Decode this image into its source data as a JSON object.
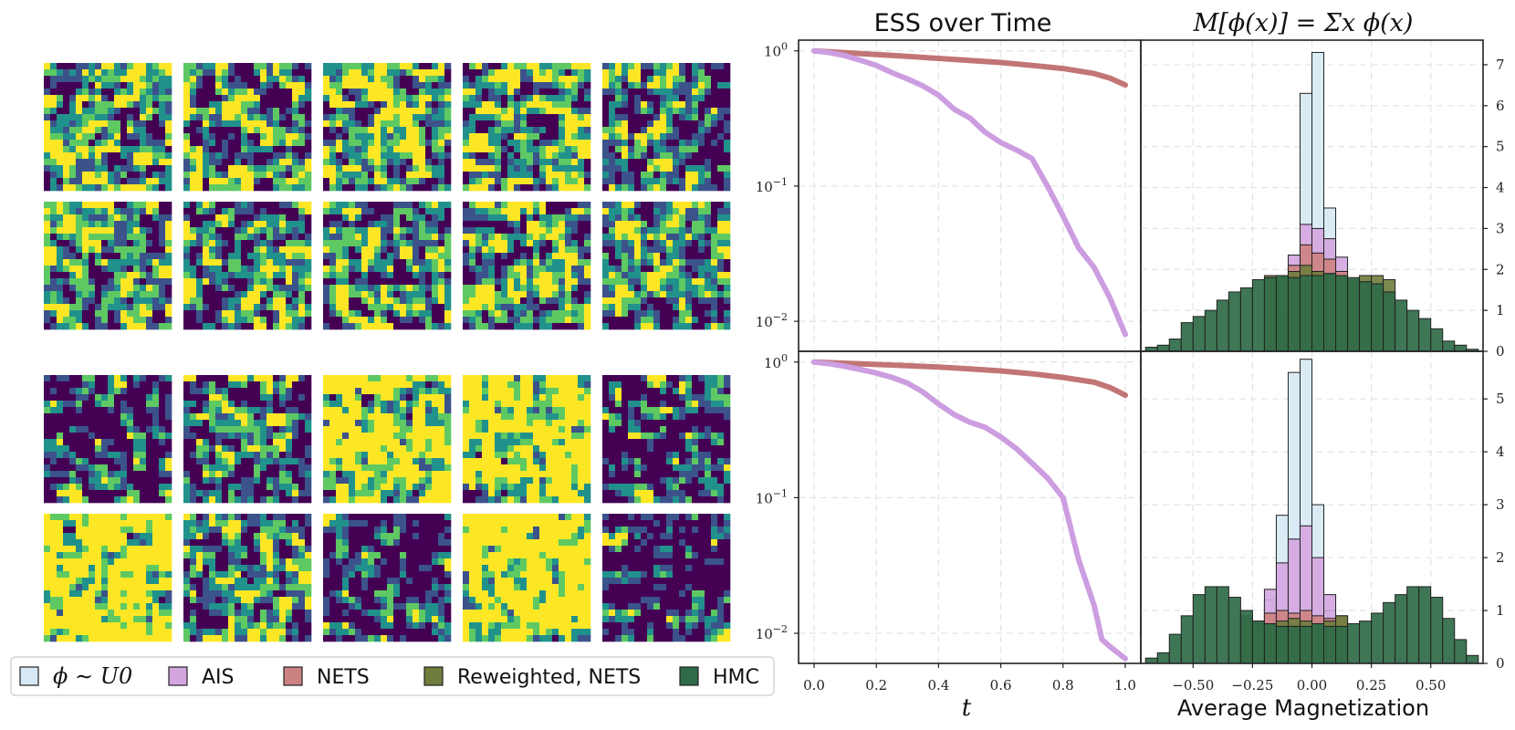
{
  "legend": {
    "items": [
      {
        "label": "ϕ ∼ U0",
        "color": "#d6e9f5"
      },
      {
        "label": "AIS",
        "color": "#d4a6e0"
      },
      {
        "label": "NETS",
        "color": "#cd8282"
      },
      {
        "label": "Reweighted, NETS",
        "color": "#6f7d3c"
      },
      {
        "label": "HMC",
        "color": "#2f6b48"
      }
    ]
  },
  "samples": {
    "colormap": [
      "#440154",
      "#3b528b",
      "#21918c",
      "#5ec962",
      "#fde725"
    ],
    "grid_size": 20,
    "seeds": [
      [
        11,
        12,
        13,
        14,
        15,
        16,
        17,
        18,
        19,
        20
      ],
      [
        21,
        22,
        23,
        24,
        25,
        26,
        27,
        28,
        29,
        30
      ]
    ],
    "bias": [
      [
        0.1,
        0.0,
        0.15,
        0.0,
        -0.05,
        0.0,
        0.0,
        -0.05,
        0.0,
        -0.05
      ],
      [
        -0.35,
        -0.15,
        0.35,
        0.45,
        -0.25,
        0.55,
        -0.1,
        -0.3,
        0.55,
        -0.4
      ]
    ]
  },
  "chart_data": [
    {
      "type": "line",
      "title": "ESS over Time",
      "ylog": true,
      "ylim": [
        0.006,
        1.2
      ],
      "xlim": [
        -0.05,
        1.05
      ],
      "yticks": [
        "10^0",
        "10^-1",
        "10^-2"
      ],
      "xticks": [
        "0.0",
        "0.2",
        "0.4",
        "0.6",
        "0.8",
        "1.0"
      ],
      "xlabel": "",
      "series": [
        {
          "color": "#c27575",
          "x": [
            0,
            0.1,
            0.2,
            0.3,
            0.4,
            0.5,
            0.6,
            0.7,
            0.8,
            0.9,
            0.95,
            1.0
          ],
          "y": [
            1.0,
            0.97,
            0.94,
            0.91,
            0.88,
            0.85,
            0.82,
            0.78,
            0.74,
            0.68,
            0.63,
            0.56
          ]
        },
        {
          "color": "#cc9de0",
          "x": [
            0,
            0.05,
            0.1,
            0.15,
            0.2,
            0.25,
            0.3,
            0.35,
            0.4,
            0.45,
            0.5,
            0.55,
            0.6,
            0.65,
            0.7,
            0.75,
            0.8,
            0.85,
            0.9,
            0.95,
            1.0
          ],
          "y": [
            1.0,
            0.97,
            0.92,
            0.85,
            0.78,
            0.69,
            0.62,
            0.55,
            0.47,
            0.37,
            0.32,
            0.25,
            0.21,
            0.185,
            0.16,
            0.1,
            0.06,
            0.035,
            0.025,
            0.015,
            0.008
          ]
        }
      ]
    },
    {
      "type": "line",
      "title": "",
      "ylog": true,
      "ylim": [
        0.006,
        1.2
      ],
      "xlim": [
        -0.05,
        1.05
      ],
      "yticks": [
        "10^0",
        "10^-1",
        "10^-2"
      ],
      "xticks": [
        "0.0",
        "0.2",
        "0.4",
        "0.6",
        "0.8",
        "1.0"
      ],
      "xlabel": "t",
      "series": [
        {
          "color": "#c27575",
          "x": [
            0,
            0.1,
            0.2,
            0.3,
            0.4,
            0.5,
            0.6,
            0.7,
            0.8,
            0.9,
            0.95,
            1.0
          ],
          "y": [
            1.0,
            0.98,
            0.96,
            0.94,
            0.92,
            0.89,
            0.86,
            0.82,
            0.77,
            0.71,
            0.65,
            0.57
          ]
        },
        {
          "color": "#cc9de0",
          "x": [
            0,
            0.05,
            0.1,
            0.15,
            0.2,
            0.25,
            0.3,
            0.35,
            0.4,
            0.45,
            0.5,
            0.55,
            0.6,
            0.65,
            0.7,
            0.75,
            0.8,
            0.85,
            0.9,
            0.925,
            0.95,
            1.0
          ],
          "y": [
            1.0,
            0.97,
            0.93,
            0.88,
            0.83,
            0.77,
            0.7,
            0.6,
            0.49,
            0.41,
            0.36,
            0.33,
            0.28,
            0.23,
            0.18,
            0.14,
            0.1,
            0.035,
            0.016,
            0.009,
            0.008,
            0.0065
          ]
        }
      ]
    },
    {
      "type": "histogram",
      "title": "M[ϕ(x)] = Σx ϕ(x)",
      "xlabel": "",
      "xlim": [
        -0.72,
        0.72
      ],
      "ylim": [
        0,
        7.6
      ],
      "bin_width": 0.05,
      "xticks": [
        "−0.50",
        "−0.25",
        "0.00",
        "0.25",
        "0.50"
      ],
      "yticks": [
        "0",
        "1",
        "2",
        "3",
        "4",
        "5",
        "6",
        "7"
      ],
      "series": [
        {
          "name": "ϕ ∼ U0",
          "color": "#d6e9f5",
          "bins_start": -0.15,
          "values": [
            0,
            0,
            6.3,
            7.3,
            3.5,
            0,
            0
          ]
        },
        {
          "name": "AIS",
          "color": "#d4a6e0",
          "bins_start": -0.15,
          "values": [
            0.2,
            2.35,
            3.1,
            3.0,
            2.75,
            2.3,
            0.3
          ]
        },
        {
          "name": "NETS",
          "color": "#cd8282",
          "bins_start": -0.15,
          "values": [
            0.8,
            2.1,
            2.6,
            2.4,
            2.25,
            1.95,
            0.8
          ]
        },
        {
          "name": "Reweighted, NETS",
          "color": "#6f7d3c",
          "bins_start": -0.2,
          "values": [
            1.85,
            1.85,
            1.95,
            2.1,
            1.95,
            1.9,
            1.85,
            1.75,
            1.85,
            1.85,
            1.75
          ]
        },
        {
          "name": "HMC",
          "color": "#2f6b48",
          "bins_start": -0.7,
          "values": [
            0.1,
            0.15,
            0.3,
            0.7,
            0.85,
            1.0,
            1.25,
            1.45,
            1.55,
            1.75,
            1.8,
            1.85,
            1.8,
            1.85,
            1.85,
            1.9,
            1.85,
            1.8,
            1.7,
            1.65,
            1.45,
            1.25,
            1.0,
            0.8,
            0.55,
            0.25,
            0.15,
            0.05
          ]
        }
      ]
    },
    {
      "type": "histogram",
      "title": "",
      "xlabel": "Average Magnetization",
      "xlim": [
        -0.72,
        0.72
      ],
      "ylim": [
        0,
        5.9
      ],
      "bin_width": 0.05,
      "xticks": [
        "−0.50",
        "−0.25",
        "0.00",
        "0.25",
        "0.50"
      ],
      "yticks": [
        "0",
        "1",
        "2",
        "3",
        "4",
        "5"
      ],
      "series": [
        {
          "name": "ϕ ∼ U0",
          "color": "#d6e9f5",
          "bins_start": -0.25,
          "values": [
            0.3,
            1.2,
            2.8,
            5.5,
            5.75,
            3.0,
            1.0,
            0.3
          ]
        },
        {
          "name": "AIS",
          "color": "#d4a6e0",
          "bins_start": -0.25,
          "values": [
            0.6,
            1.4,
            1.9,
            2.35,
            2.6,
            2.0,
            1.3,
            0.5
          ]
        },
        {
          "name": "NETS",
          "color": "#cd8282",
          "bins_start": -0.3,
          "values": [
            0.9,
            0.8,
            0.95,
            1.0,
            0.95,
            1.0,
            0.9,
            0.85,
            0.9
          ]
        },
        {
          "name": "Reweighted, NETS",
          "color": "#6f7d3c",
          "bins_start": -0.3,
          "values": [
            0.85,
            0.75,
            0.75,
            0.8,
            0.85,
            0.8,
            0.75,
            0.8,
            0.9
          ]
        },
        {
          "name": "HMC",
          "color": "#2f6b48",
          "bins_start": -0.7,
          "values": [
            0.1,
            0.2,
            0.55,
            0.9,
            1.3,
            1.45,
            1.45,
            1.25,
            1.0,
            0.8,
            0.75,
            0.7,
            0.7,
            0.7,
            0.75,
            0.7,
            0.7,
            0.75,
            0.8,
            0.95,
            1.15,
            1.3,
            1.45,
            1.45,
            1.25,
            0.85,
            0.45,
            0.15
          ]
        }
      ]
    }
  ]
}
